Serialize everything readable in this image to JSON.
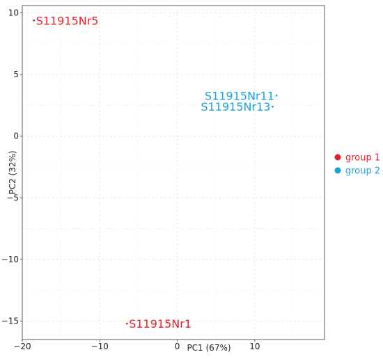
{
  "chart_data": {
    "type": "scatter",
    "title": "",
    "xlabel": "PC1 (67%)",
    "ylabel": "PC2 (32%)",
    "xlim": [
      -20,
      19
    ],
    "ylim": [
      -16.5,
      10.6
    ],
    "xticks": [
      -20,
      -10,
      0,
      10
    ],
    "xtick_labels": [
      "−20",
      "−10",
      "0",
      "10"
    ],
    "yticks": [
      10,
      5,
      0,
      -5,
      -10,
      -15
    ],
    "ytick_labels": [
      "10",
      "5",
      "0",
      "−5",
      "−10",
      "−15"
    ],
    "grid": true,
    "legend_position": "right",
    "series": [
      {
        "name": "group 1",
        "color": "#e8202a",
        "points": [
          {
            "label": "S11915Nr5",
            "x": -18.5,
            "y": 9.4
          },
          {
            "label": "S11915Nr1",
            "x": -6.5,
            "y": -15.2
          }
        ]
      },
      {
        "name": "group 2",
        "color": "#1ba0dc",
        "points": [
          {
            "label": "S11915Nr11",
            "x": 12.8,
            "y": 3.3
          },
          {
            "label": "S11915Nr13",
            "x": 12.3,
            "y": 2.4
          }
        ]
      }
    ]
  }
}
